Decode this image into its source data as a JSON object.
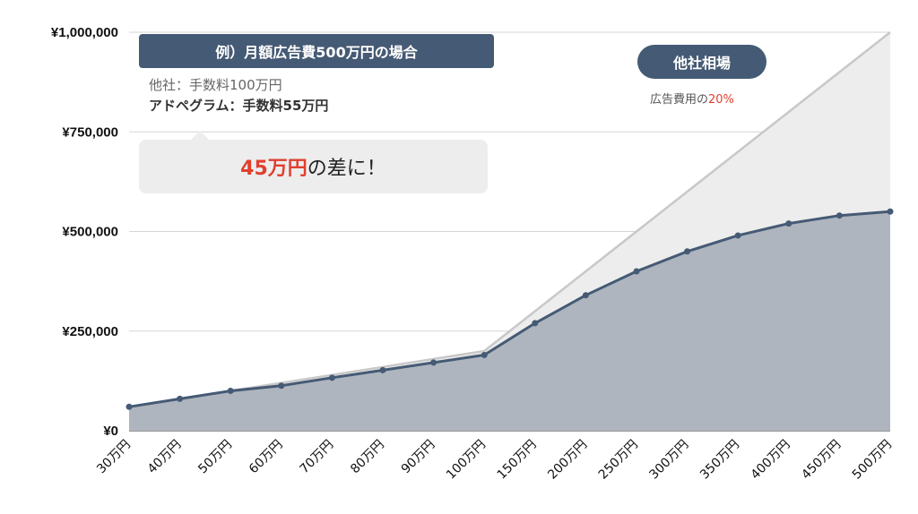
{
  "chart_data": {
    "type": "area",
    "categories": [
      "30万円",
      "40万円",
      "50万円",
      "60万円",
      "70万円",
      "80万円",
      "90万円",
      "100万円",
      "150万円",
      "200万円",
      "250万円",
      "300万円",
      "350万円",
      "400万円",
      "450万円",
      "500万円"
    ],
    "series": [
      {
        "values": [
          60000,
          80000,
          100000,
          120000,
          140000,
          160000,
          180000,
          200000,
          300000,
          400000,
          500000,
          600000,
          700000,
          800000,
          900000,
          1000000
        ]
      },
      {
        "values": [
          60000,
          80000,
          100000,
          113000,
          133000,
          152000,
          171000,
          190000,
          270000,
          340000,
          400000,
          450000,
          490000,
          520000,
          540000,
          550000
        ]
      }
    ],
    "ylim": [
      0,
      1000000
    ],
    "yticks": [
      "¥0",
      "¥250,000",
      "¥500,000",
      "¥750,000",
      "¥1,000,000"
    ],
    "grid": true,
    "colors": {
      "others": "#c8c8c8",
      "others_fill": "#ededed",
      "ours_line": "#455a74",
      "ours_fill": "#aeb5bf"
    }
  },
  "example": {
    "title": "例）月額広告費500万円の場合",
    "line1": "他社：手数料100万円",
    "line2": "アドペグラム：手数料55万円"
  },
  "callout": {
    "accent": "45万円",
    "rest": "の差に！"
  },
  "market": {
    "pill": "他社相場",
    "note_prefix": "広告費用の",
    "note_pct": "20%"
  }
}
